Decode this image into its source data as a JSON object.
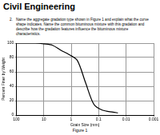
{
  "header": "Civil Engineering",
  "question": {
    "number": "2.",
    "text": "Name the aggregate gradation type shown in Figure 1 and explain what the curve shape indicates. Name the common bituminous mixture with this gradation and describe how the gradation features influence the bituminous mixture characteristics."
  },
  "figure_caption": "Figure 1",
  "chart_data": {
    "type": "line",
    "x_label": "Grain Size (mm)",
    "y_label": "Percent Finer by Weight",
    "x": [
      100,
      20,
      10,
      4.75,
      2.36,
      1.18,
      0.6,
      0.3,
      0.15,
      0.075,
      0.03,
      0.02
    ],
    "values": [
      100,
      100,
      99,
      97,
      90,
      84,
      76,
      45,
      15,
      7,
      4,
      3
    ],
    "color": "#000000",
    "xlim": [
      100,
      0.001
    ],
    "xticks": [
      100,
      10,
      1,
      0.1,
      0.01,
      0.001
    ],
    "ylim": [
      0,
      100
    ],
    "yticks": [
      0,
      20,
      40,
      60,
      80,
      100
    ],
    "log": "x",
    "grid": true
  }
}
